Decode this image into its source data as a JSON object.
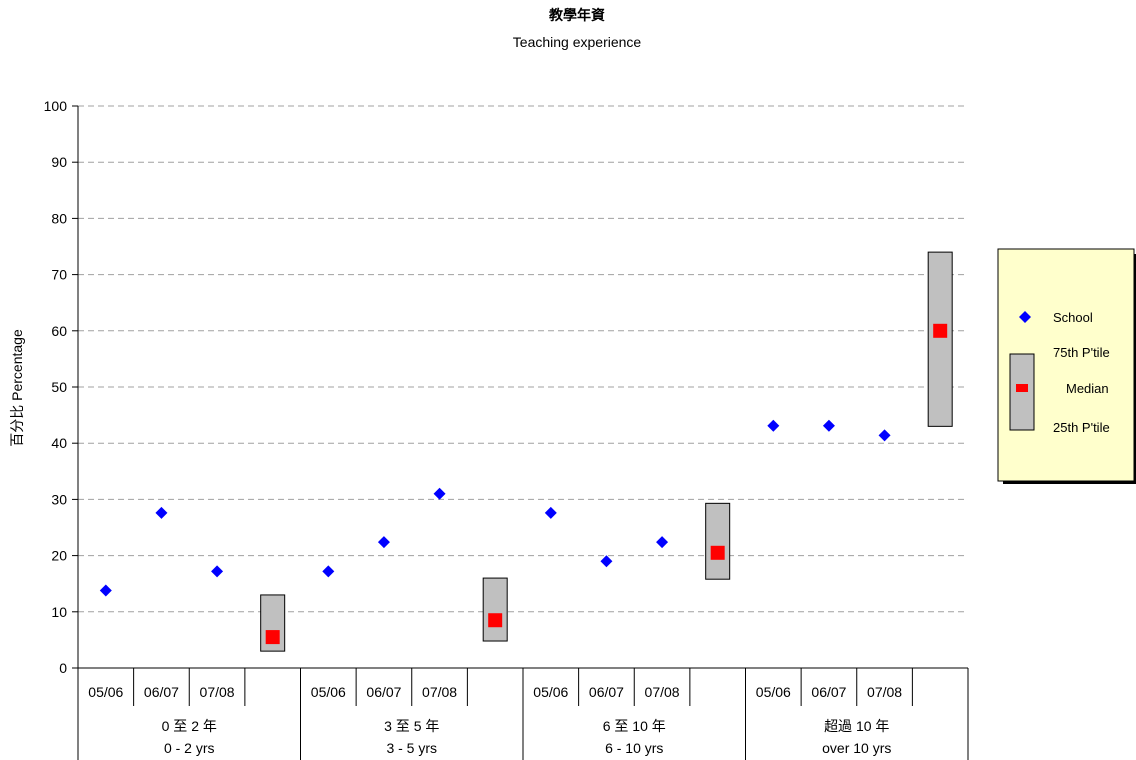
{
  "chart_data": {
    "type": "scatter",
    "title": "教學年資",
    "subtitle": "Teaching experience",
    "ylabel": "百分比 Percentage",
    "ylim": [
      0,
      100
    ],
    "yticks": [
      0,
      10,
      20,
      30,
      40,
      50,
      60,
      70,
      80,
      90,
      100
    ],
    "grid": "horizontal-dashed",
    "groups": [
      {
        "label_zh": "0 至 2 年",
        "label_en": "0 - 2 yrs"
      },
      {
        "label_zh": "3 至 5 年",
        "label_en": "3 - 5 yrs"
      },
      {
        "label_zh": "6 至 10 年",
        "label_en": "6 - 10 yrs"
      },
      {
        "label_zh": "超過 10 年",
        "label_en": "over 10 yrs"
      }
    ],
    "years": [
      "05/06",
      "06/07",
      "07/08"
    ],
    "school": [
      [
        13.8,
        27.6,
        17.2
      ],
      [
        17.2,
        22.4,
        31.0
      ],
      [
        27.6,
        19.0,
        22.4
      ],
      [
        43.1,
        43.1,
        41.4
      ]
    ],
    "boxes": [
      {
        "p25": 3.0,
        "median": 5.5,
        "p75": 13.0
      },
      {
        "p25": 4.8,
        "median": 8.5,
        "p75": 16.0
      },
      {
        "p25": 15.8,
        "median": 20.5,
        "p75": 29.3
      },
      {
        "p25": 43.0,
        "median": 60.0,
        "p75": 74.0
      }
    ],
    "legend": {
      "placement": "right",
      "school": "School",
      "p75": "75th P'tile",
      "median": "Median",
      "p25": "25th P'tile"
    },
    "colors": {
      "school": "#0000ff",
      "median": "#ff0000",
      "box_fill": "#c0c0c0",
      "legend_bg": "#ffffcc",
      "grid": "#a0a0a0"
    }
  }
}
